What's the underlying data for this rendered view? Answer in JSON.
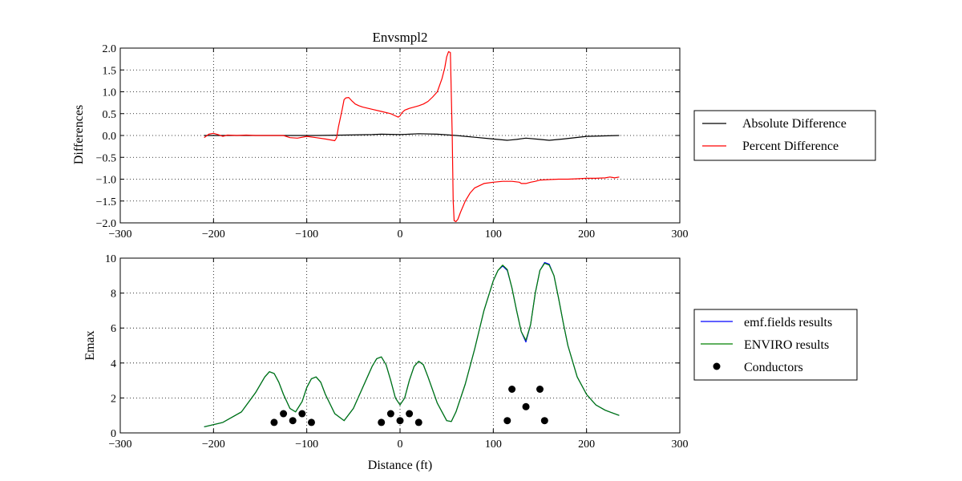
{
  "chart_data": [
    {
      "type": "line",
      "title": "Envsmpl2",
      "xlabel": "",
      "ylabel": "Differences",
      "xlim": [
        -300,
        300
      ],
      "ylim": [
        -2.0,
        2.0
      ],
      "xticks": [
        -300,
        -200,
        -100,
        0,
        100,
        200,
        300
      ],
      "yticks": [
        2.0,
        1.5,
        1.0,
        0.5,
        0.0,
        -0.5,
        -1.0,
        -1.5,
        -2.0
      ],
      "grid": true,
      "legend": "right",
      "series": [
        {
          "name": "Absolute Difference",
          "color": "#000000",
          "x": [
            -210,
            -180,
            -150,
            -120,
            -90,
            -60,
            -30,
            -20,
            0,
            20,
            40,
            60,
            80,
            100,
            115,
            125,
            135,
            150,
            160,
            175,
            200,
            235
          ],
          "y": [
            0.0,
            0.0,
            0.0,
            0.0,
            0.0,
            0.01,
            0.02,
            0.03,
            0.02,
            0.04,
            0.03,
            0.0,
            -0.04,
            -0.08,
            -0.11,
            -0.09,
            -0.06,
            -0.09,
            -0.11,
            -0.08,
            -0.02,
            0.0
          ]
        },
        {
          "name": "Percent Difference",
          "color": "#ff0000",
          "x": [
            -210,
            -205,
            -200,
            -195,
            -190,
            -185,
            -175,
            -165,
            -155,
            -145,
            -135,
            -125,
            -118,
            -110,
            -100,
            -90,
            -80,
            -70,
            -68,
            -66,
            -62,
            -60,
            -58,
            -55,
            -52,
            -48,
            -44,
            -40,
            -30,
            -20,
            -10,
            -5,
            -2,
            0,
            2,
            5,
            10,
            15,
            20,
            25,
            30,
            35,
            40,
            45,
            48,
            50,
            52,
            54,
            56,
            57,
            58,
            60,
            62,
            65,
            70,
            75,
            80,
            90,
            100,
            110,
            120,
            128,
            130,
            135,
            140,
            145,
            150,
            160,
            170,
            180,
            190,
            200,
            210,
            220,
            225,
            230,
            235
          ],
          "y": [
            -0.05,
            0.03,
            0.05,
            0.02,
            -0.02,
            0.01,
            0.0,
            0.01,
            0.0,
            0.0,
            0.0,
            0.0,
            -0.05,
            -0.06,
            -0.02,
            -0.05,
            -0.08,
            -0.12,
            -0.05,
            0.2,
            0.6,
            0.82,
            0.86,
            0.87,
            0.8,
            0.72,
            0.68,
            0.65,
            0.6,
            0.55,
            0.5,
            0.45,
            0.42,
            0.45,
            0.52,
            0.58,
            0.62,
            0.65,
            0.68,
            0.72,
            0.78,
            0.88,
            1.0,
            1.3,
            1.55,
            1.8,
            1.92,
            1.9,
            0.0,
            -1.5,
            -1.95,
            -1.97,
            -1.92,
            -1.75,
            -1.5,
            -1.32,
            -1.2,
            -1.1,
            -1.07,
            -1.05,
            -1.05,
            -1.07,
            -1.1,
            -1.1,
            -1.07,
            -1.05,
            -1.02,
            -1.01,
            -1.0,
            -1.0,
            -0.99,
            -0.98,
            -0.98,
            -0.97,
            -0.95,
            -0.97,
            -0.95
          ]
        }
      ]
    },
    {
      "type": "line",
      "title": "",
      "xlabel": "Distance (ft)",
      "ylabel": "Emax",
      "xlim": [
        -300,
        300
      ],
      "ylim": [
        0,
        10
      ],
      "xticks": [
        -300,
        -200,
        -100,
        0,
        100,
        200,
        300
      ],
      "yticks": [
        10,
        8,
        6,
        4,
        2,
        0
      ],
      "grid": true,
      "legend": "right",
      "series": [
        {
          "name": "emf.fields results",
          "color": "#0000ff",
          "x": [
            -210,
            -190,
            -170,
            -155,
            -145,
            -140,
            -135,
            -130,
            -125,
            -118,
            -112,
            -105,
            -100,
            -95,
            -90,
            -85,
            -80,
            -70,
            -60,
            -50,
            -40,
            -30,
            -25,
            -20,
            -15,
            -10,
            -5,
            0,
            5,
            10,
            15,
            20,
            25,
            30,
            40,
            50,
            55,
            60,
            70,
            80,
            90,
            100,
            105,
            110,
            115,
            120,
            125,
            130,
            135,
            140,
            145,
            150,
            155,
            160,
            165,
            170,
            175,
            180,
            190,
            200,
            210,
            220,
            235
          ],
          "y": [
            0.35,
            0.6,
            1.2,
            2.3,
            3.2,
            3.5,
            3.4,
            2.9,
            2.2,
            1.4,
            1.2,
            1.8,
            2.6,
            3.1,
            3.2,
            2.9,
            2.2,
            1.1,
            0.7,
            1.4,
            2.6,
            3.8,
            4.25,
            4.35,
            3.9,
            3.0,
            2.0,
            1.6,
            2.0,
            3.0,
            3.8,
            4.1,
            3.9,
            3.2,
            1.7,
            0.7,
            0.65,
            1.2,
            2.8,
            4.8,
            7.0,
            8.7,
            9.3,
            9.55,
            9.3,
            8.3,
            7.0,
            5.8,
            5.2,
            6.2,
            8.0,
            9.3,
            9.75,
            9.65,
            9.0,
            7.7,
            6.3,
            5.0,
            3.2,
            2.2,
            1.6,
            1.3,
            1.0
          ]
        },
        {
          "name": "ENVIRO results",
          "color": "#008000",
          "x": [
            -210,
            -190,
            -170,
            -155,
            -145,
            -140,
            -135,
            -130,
            -125,
            -118,
            -112,
            -105,
            -100,
            -95,
            -90,
            -85,
            -80,
            -70,
            -60,
            -50,
            -40,
            -30,
            -25,
            -20,
            -15,
            -10,
            -5,
            0,
            5,
            10,
            15,
            20,
            25,
            30,
            40,
            50,
            55,
            60,
            70,
            80,
            90,
            100,
            105,
            110,
            115,
            120,
            125,
            130,
            135,
            140,
            145,
            150,
            155,
            160,
            165,
            170,
            175,
            180,
            190,
            200,
            210,
            220,
            235
          ],
          "y": [
            0.35,
            0.6,
            1.2,
            2.3,
            3.2,
            3.5,
            3.4,
            2.9,
            2.2,
            1.4,
            1.2,
            1.8,
            2.6,
            3.1,
            3.2,
            2.9,
            2.2,
            1.1,
            0.7,
            1.4,
            2.6,
            3.8,
            4.25,
            4.35,
            3.9,
            3.0,
            2.0,
            1.6,
            2.0,
            3.0,
            3.8,
            4.1,
            3.9,
            3.2,
            1.7,
            0.7,
            0.65,
            1.2,
            2.8,
            4.8,
            7.0,
            8.7,
            9.3,
            9.6,
            9.35,
            8.3,
            7.0,
            5.8,
            5.3,
            6.2,
            8.0,
            9.3,
            9.7,
            9.6,
            9.0,
            7.7,
            6.3,
            5.0,
            3.2,
            2.2,
            1.6,
            1.3,
            1.0
          ]
        },
        {
          "name": "Conductors",
          "color": "#000000",
          "marker": "circle",
          "x": [
            -135,
            -125,
            -115,
            -105,
            -95,
            -20,
            -10,
            0,
            10,
            20,
            115,
            120,
            135,
            150,
            155
          ],
          "y": [
            0.6,
            1.1,
            0.7,
            1.1,
            0.6,
            0.6,
            1.1,
            0.7,
            1.1,
            0.6,
            0.7,
            2.5,
            1.5,
            2.5,
            0.7
          ]
        }
      ]
    }
  ]
}
